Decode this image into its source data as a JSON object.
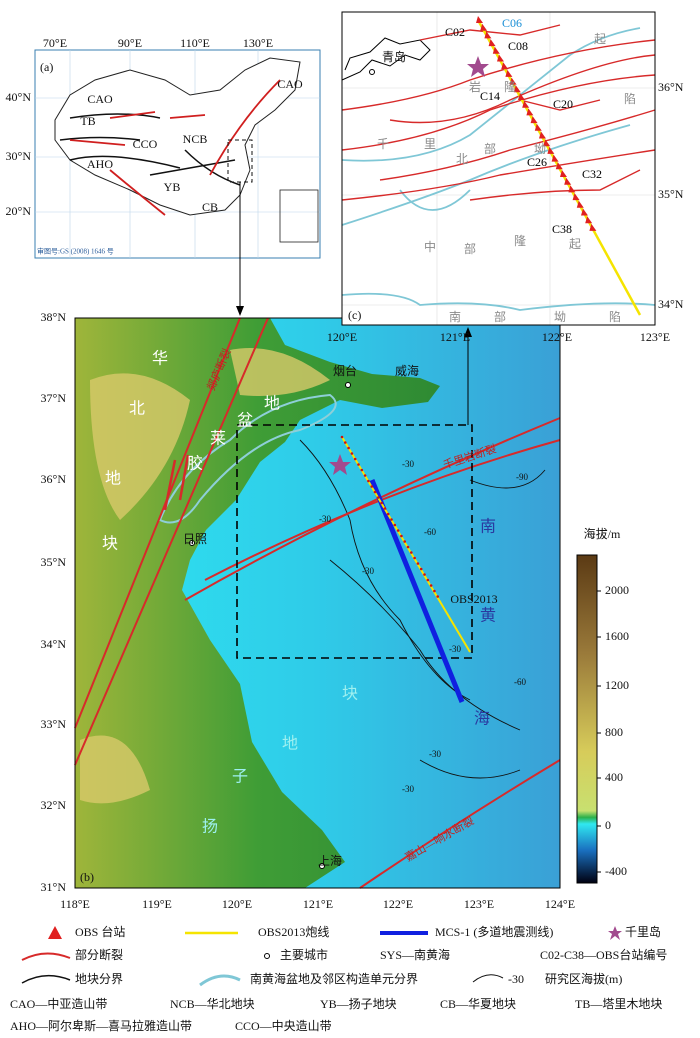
{
  "panel_a": {
    "label": "(a)",
    "lon_labels": [
      "70°E",
      "90°E",
      "110°E",
      "130°E"
    ],
    "lat_labels": [
      "40°N",
      "30°N",
      "20°N"
    ],
    "regions": [
      "CAO",
      "CAO",
      "TB",
      "NCB",
      "CCO",
      "AHO",
      "YB",
      "CB"
    ],
    "footnote": "审图号:GS (2008) 1646 号"
  },
  "panel_b": {
    "label": "(b)",
    "lon_labels": [
      "118°E",
      "119°E",
      "120°E",
      "121°E",
      "122°E",
      "123°E",
      "124°E"
    ],
    "lat_labels": [
      "38°N",
      "37°N",
      "36°N",
      "35°N",
      "34°N",
      "33°N",
      "32°N",
      "31°N"
    ],
    "cities": [
      "烟台",
      "威海",
      "日照",
      "上海"
    ],
    "units": [
      "华",
      "北",
      "地",
      "块",
      "胶",
      "莱",
      "盆",
      "地",
      "南",
      "黄",
      "海",
      "扬",
      "子",
      "地",
      "块"
    ],
    "faults": [
      "郯庐断裂",
      "千里岩断裂",
      "嘉山—响水断裂"
    ],
    "contours": [
      "-30",
      "-30",
      "-30",
      "-60",
      "-90",
      "-30",
      "-60",
      "-30",
      "-30"
    ],
    "line_label": "OBS2013"
  },
  "panel_c": {
    "label": "(c)",
    "lon_labels": [
      "120°E",
      "121°E",
      "122°E",
      "123°E"
    ],
    "lat_labels": [
      "36°N",
      "35°N",
      "34°N"
    ],
    "city": "青岛",
    "stations": [
      "C02",
      "C06",
      "C08",
      "C14",
      "C20",
      "C26",
      "C32",
      "C38"
    ],
    "units": [
      "隆",
      "起",
      "岩",
      "陷",
      "千",
      "里",
      "北",
      "部",
      "坳",
      "中",
      "部",
      "隆",
      "起",
      "南",
      "部",
      "坳",
      "陷"
    ]
  },
  "colorbar": {
    "title": "海拔/m",
    "ticks": [
      "2000",
      "1600",
      "1200",
      "800",
      "400",
      "0",
      "-400"
    ]
  },
  "legend": {
    "rows": [
      [
        "OBS 台站",
        "OBS2013炮线",
        "MCS-1 (多道地震测线)",
        "千里岛"
      ],
      [
        "部分断裂",
        "主要城市",
        "SYS—南黄海",
        "C02-C38—OBS台站编号"
      ],
      [
        "地块分界",
        "南黄海盆地及邻区构造单元分界",
        "-30",
        "研究区海拔(m)"
      ],
      [
        "CAO—中亚造山带",
        "NCB—华北地块",
        "YB—扬子地块",
        "CB—华夏地块",
        "TB—塔里木地块"
      ],
      [
        "AHO—阿尔卑斯—喜马拉雅造山带",
        "CCO—中央造山带"
      ]
    ]
  }
}
